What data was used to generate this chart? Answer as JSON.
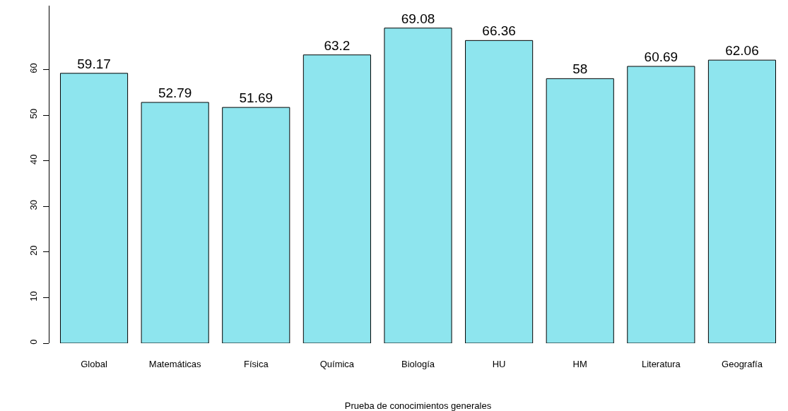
{
  "chart_data": {
    "type": "bar",
    "xlabel": "Prueba de conocimientos generales",
    "categories": [
      "Global",
      "Matemáticas",
      "Física",
      "Química",
      "Biología",
      "HU",
      "HM",
      "Literatura",
      "Geografía"
    ],
    "values": [
      59.17,
      52.79,
      51.69,
      63.2,
      69.08,
      66.36,
      58,
      60.69,
      62.06
    ],
    "color": "#8ee5ee",
    "data_labels": true,
    "ylim": [
      0,
      74
    ],
    "yticks": [
      0,
      10,
      20,
      30,
      40,
      50,
      60
    ],
    "grid": false
  }
}
